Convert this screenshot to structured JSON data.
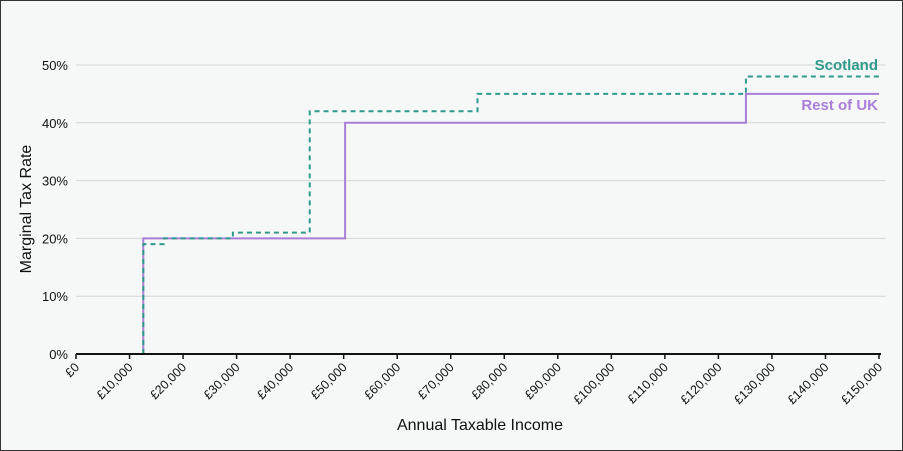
{
  "chart_data": {
    "type": "line",
    "title": "",
    "xlabel": "Annual Taxable Income",
    "ylabel": "Marginal Tax Rate",
    "xlim": [
      0,
      150000
    ],
    "ylim": [
      0,
      50
    ],
    "grid": "horizontal",
    "x_ticks": [
      0,
      10000,
      20000,
      30000,
      40000,
      50000,
      60000,
      70000,
      80000,
      90000,
      100000,
      110000,
      120000,
      130000,
      140000,
      150000
    ],
    "x_tick_labels": [
      "£0",
      "£10,000",
      "£20,000",
      "£30,000",
      "£40,000",
      "£50,000",
      "£60,000",
      "£70,000",
      "£80,000",
      "£90,000",
      "£100,000",
      "£110,000",
      "£120,000",
      "£130,000",
      "£140,000",
      "£150,000"
    ],
    "y_ticks": [
      0,
      10,
      20,
      30,
      40,
      50
    ],
    "y_tick_labels": [
      "0%",
      "10%",
      "20%",
      "30%",
      "40%",
      "50%"
    ],
    "series": [
      {
        "name": "Scotland",
        "color": "#2f9a8c",
        "style": "dashed",
        "steps": [
          [
            12570,
            19
          ],
          [
            16400,
            20
          ],
          [
            29300,
            21
          ],
          [
            43660,
            42
          ],
          [
            75000,
            45
          ],
          [
            125140,
            48
          ]
        ],
        "end": 150000
      },
      {
        "name": "Rest of UK",
        "color": "#a97ed8",
        "style": "solid",
        "steps": [
          [
            12570,
            20
          ],
          [
            50270,
            40
          ],
          [
            125140,
            45
          ]
        ],
        "end": 150000
      }
    ],
    "legend": "inline-right"
  }
}
